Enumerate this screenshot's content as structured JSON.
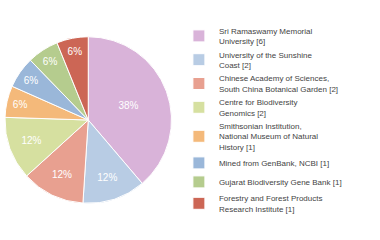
{
  "chart_data": {
    "type": "pie",
    "categories": [
      "Sri Ramaswamy Memorial\nUniversity [6]",
      "University of the Sunshine\nCoast [2]",
      "Chinese Academy of Sciences,\nSouth China Botanical Garden [2]",
      "Centre for Biodiversity\nGenomics [2]",
      "Smithsonian Institution,\nNational Museum of Natural\nHistory [1]",
      "Mined from GenBank, NCBI [1]",
      "Gujarat Biodiversity Gene Bank [1]",
      "Forestry and Forest Products\nResearch Institute [1]"
    ],
    "values": [
      38,
      12,
      12,
      12,
      6,
      6,
      6,
      6
    ],
    "value_labels": [
      "38%",
      "12%",
      "12%",
      "12%",
      "6%",
      "6%",
      "6%",
      "6%"
    ],
    "colors": [
      "#d9b3d9",
      "#b8cce4",
      "#e8a090",
      "#d6e0a0",
      "#f4b97a",
      "#9ab7d9",
      "#b5cc8e",
      "#cc6655"
    ],
    "data_labels": true,
    "legend": "right"
  }
}
